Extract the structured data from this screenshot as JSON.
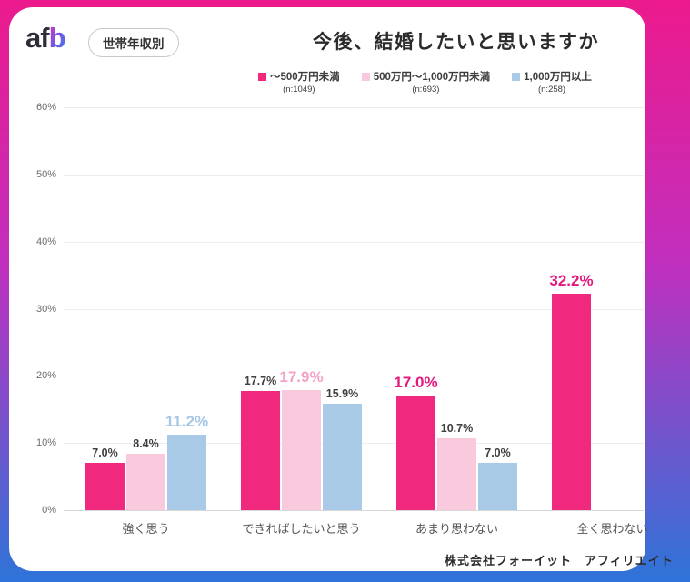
{
  "brand": {
    "logo_af": "af",
    "logo_b": "b",
    "badge": "世帯年収別"
  },
  "header": {
    "title": "今後、結婚したいと思いますか"
  },
  "footer": {
    "credit": "株式会社フォーイット　アフィリエイト"
  },
  "colors": {
    "frame_top": "#ec1a8c",
    "frame_bottom": "#2e74d8",
    "card_bg": "#ffffff",
    "normal_value_label": "#3f3f3f"
  },
  "chart_data": {
    "type": "bar",
    "title": "今後、結婚したいと思いますか",
    "xlabel": "",
    "ylabel": "",
    "ylim": [
      0,
      60
    ],
    "yticks": [
      0,
      10,
      20,
      30,
      40,
      50,
      60
    ],
    "ytick_suffix": "%",
    "grid": true,
    "legend_position": "top",
    "categories": [
      "強く思う",
      "できればしたいと思う",
      "あまり思わない",
      "全く思わない"
    ],
    "series": [
      {
        "name": "〜500万円未満",
        "n_label": "(n:1049)",
        "color": "#f0297e",
        "emphasis_label_color": "#e3197c",
        "values": [
          7.0,
          17.7,
          17.0,
          32.2
        ]
      },
      {
        "name": "500万円〜1,000万円未満",
        "n_label": "(n:693)",
        "color": "#f9c9de",
        "emphasis_label_color": "#f3a2c8",
        "values": [
          8.4,
          17.9,
          10.7,
          null
        ]
      },
      {
        "name": "1,000万円以上",
        "n_label": "(n:258)",
        "color": "#a9cae6",
        "emphasis_label_color": "#a4c8e6",
        "values": [
          11.2,
          15.9,
          7.0,
          null
        ]
      }
    ],
    "emphasis_series_per_category": [
      2,
      1,
      0,
      0
    ],
    "value_label_format": "percent_one_decimal"
  }
}
